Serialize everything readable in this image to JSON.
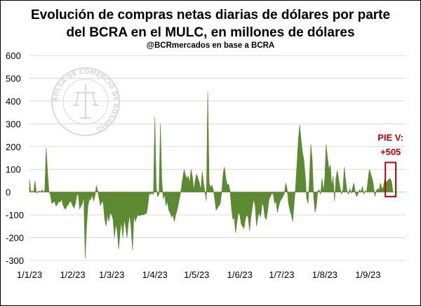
{
  "chart_data": {
    "type": "area",
    "title_line1": "Evolución de compras netas diarias de dólares por parte",
    "title_line2": "del BCRA en el MULC, en millones de dólares",
    "subtitle": "@BCRmercados en base a BCRA",
    "xlabel": "",
    "ylabel": "",
    "ylim": [
      -300,
      600
    ],
    "y_ticks": [
      600,
      500,
      400,
      300,
      200,
      100,
      0,
      -100,
      -200,
      -300
    ],
    "x_tick_labels": [
      "1/1/23",
      "1/2/23",
      "1/3/23",
      "1/4/23",
      "1/5/23",
      "1/6/23",
      "1/7/23",
      "1/8/23",
      "1/9/23"
    ],
    "x_tick_days": [
      0,
      31,
      59,
      90,
      120,
      151,
      181,
      212,
      243
    ],
    "xlim_days": [
      0,
      270
    ],
    "grid": true,
    "color": "#5b8a31",
    "annotation": {
      "line1": "PIE V:",
      "line2": "+505",
      "color": "#c00000"
    },
    "watermark": "BOLSA DE COMERCIO DE ROSARIO",
    "series": [
      {
        "points": [
          [
            0,
            55
          ],
          [
            1,
            0
          ],
          [
            2,
            5
          ],
          [
            3,
            0
          ],
          [
            4,
            50
          ],
          [
            5,
            -5
          ],
          [
            6,
            0
          ],
          [
            7,
            5
          ],
          [
            8,
            0
          ],
          [
            9,
            10
          ],
          [
            10,
            0
          ],
          [
            11,
            5
          ],
          [
            12,
            195
          ],
          [
            13,
            90
          ],
          [
            14,
            0
          ],
          [
            15,
            -10
          ],
          [
            16,
            -50
          ],
          [
            17,
            -45
          ],
          [
            18,
            -40
          ],
          [
            19,
            -60
          ],
          [
            20,
            -55
          ],
          [
            21,
            -40
          ],
          [
            22,
            -45
          ],
          [
            23,
            -30
          ],
          [
            24,
            -55
          ],
          [
            25,
            -70
          ],
          [
            26,
            -75
          ],
          [
            27,
            -60
          ],
          [
            28,
            -55
          ],
          [
            29,
            -40
          ],
          [
            30,
            -45
          ],
          [
            31,
            -60
          ],
          [
            32,
            -70
          ],
          [
            33,
            -50
          ],
          [
            34,
            -15
          ],
          [
            35,
            -10
          ],
          [
            36,
            -75
          ],
          [
            37,
            -60
          ],
          [
            38,
            -50
          ],
          [
            39,
            -20
          ],
          [
            40,
            -290
          ],
          [
            41,
            -150
          ],
          [
            42,
            -60
          ],
          [
            43,
            -30
          ],
          [
            44,
            -35
          ],
          [
            45,
            -10
          ],
          [
            46,
            -40
          ],
          [
            47,
            -20
          ],
          [
            48,
            30
          ],
          [
            49,
            5
          ],
          [
            50,
            -30
          ],
          [
            51,
            -60
          ],
          [
            52,
            -40
          ],
          [
            53,
            -50
          ],
          [
            54,
            -120
          ],
          [
            55,
            -150
          ],
          [
            56,
            -100
          ],
          [
            57,
            -130
          ],
          [
            58,
            -90
          ],
          [
            59,
            -100
          ],
          [
            60,
            -120
          ],
          [
            61,
            -200
          ],
          [
            62,
            -140
          ],
          [
            63,
            -170
          ],
          [
            64,
            -250
          ],
          [
            65,
            -180
          ],
          [
            66,
            -130
          ],
          [
            67,
            -200
          ],
          [
            68,
            -120
          ],
          [
            69,
            -150
          ],
          [
            70,
            -200
          ],
          [
            71,
            -140
          ],
          [
            72,
            -100
          ],
          [
            73,
            -160
          ],
          [
            74,
            -255
          ],
          [
            75,
            -100
          ],
          [
            76,
            -130
          ],
          [
            77,
            -110
          ],
          [
            78,
            -100
          ],
          [
            79,
            -105
          ],
          [
            80,
            -100
          ],
          [
            81,
            -100
          ],
          [
            82,
            -100
          ],
          [
            83,
            -95
          ],
          [
            84,
            -95
          ],
          [
            85,
            -60
          ],
          [
            86,
            -5
          ],
          [
            87,
            -10
          ],
          [
            88,
            -5
          ],
          [
            89,
            -10
          ],
          [
            90,
            330
          ],
          [
            91,
            20
          ],
          [
            92,
            -20
          ],
          [
            93,
            -10
          ],
          [
            94,
            300
          ],
          [
            95,
            50
          ],
          [
            96,
            -30
          ],
          [
            97,
            -10
          ],
          [
            98,
            -60
          ],
          [
            99,
            -40
          ],
          [
            100,
            -80
          ],
          [
            101,
            -90
          ],
          [
            102,
            -110
          ],
          [
            103,
            -100
          ],
          [
            104,
            -130
          ],
          [
            105,
            -100
          ],
          [
            106,
            -80
          ],
          [
            107,
            -50
          ],
          [
            108,
            -20
          ],
          [
            109,
            15
          ],
          [
            110,
            60
          ],
          [
            111,
            100
          ],
          [
            112,
            75
          ],
          [
            113,
            60
          ],
          [
            114,
            70
          ],
          [
            115,
            40
          ],
          [
            116,
            100
          ],
          [
            117,
            65
          ],
          [
            118,
            10
          ],
          [
            119,
            50
          ],
          [
            120,
            80
          ],
          [
            121,
            60
          ],
          [
            122,
            40
          ],
          [
            123,
            10
          ],
          [
            124,
            90
          ],
          [
            125,
            40
          ],
          [
            126,
            0
          ],
          [
            127,
            -40
          ],
          [
            128,
            440
          ],
          [
            129,
            40
          ],
          [
            130,
            20
          ],
          [
            131,
            30
          ],
          [
            132,
            10
          ],
          [
            133,
            -30
          ],
          [
            134,
            -80
          ],
          [
            135,
            -70
          ],
          [
            136,
            -60
          ],
          [
            137,
            -50
          ],
          [
            138,
            0
          ],
          [
            139,
            80
          ],
          [
            140,
            110
          ],
          [
            141,
            60
          ],
          [
            142,
            30
          ],
          [
            143,
            35
          ],
          [
            144,
            5
          ],
          [
            145,
            -70
          ],
          [
            146,
            -120
          ],
          [
            147,
            -110
          ],
          [
            148,
            -180
          ],
          [
            149,
            -130
          ],
          [
            150,
            -90
          ],
          [
            151,
            -100
          ],
          [
            152,
            -140
          ],
          [
            153,
            -150
          ],
          [
            154,
            -160
          ],
          [
            155,
            -120
          ],
          [
            156,
            -100
          ],
          [
            157,
            -110
          ],
          [
            158,
            -170
          ],
          [
            159,
            -110
          ],
          [
            160,
            -70
          ],
          [
            161,
            -30
          ],
          [
            162,
            -60
          ],
          [
            163,
            -150
          ],
          [
            164,
            -110
          ],
          [
            165,
            -90
          ],
          [
            166,
            -110
          ],
          [
            167,
            -50
          ],
          [
            168,
            -60
          ],
          [
            169,
            -110
          ],
          [
            170,
            -120
          ],
          [
            171,
            -80
          ],
          [
            172,
            -30
          ],
          [
            173,
            -20
          ],
          [
            174,
            -5
          ],
          [
            175,
            -10
          ],
          [
            176,
            -50
          ],
          [
            177,
            -40
          ],
          [
            178,
            -90
          ],
          [
            179,
            -60
          ],
          [
            180,
            -40
          ],
          [
            181,
            -30
          ],
          [
            182,
            -20
          ],
          [
            183,
            -5
          ],
          [
            184,
            40
          ],
          [
            185,
            10
          ],
          [
            186,
            -50
          ],
          [
            187,
            -80
          ],
          [
            188,
            -100
          ],
          [
            189,
            -130
          ],
          [
            190,
            -50
          ],
          [
            191,
            20
          ],
          [
            192,
            120
          ],
          [
            193,
            225
          ],
          [
            194,
            295
          ],
          [
            195,
            230
          ],
          [
            196,
            175
          ],
          [
            197,
            140
          ],
          [
            198,
            70
          ],
          [
            199,
            -30
          ],
          [
            200,
            -50
          ],
          [
            201,
            55
          ],
          [
            202,
            210
          ],
          [
            203,
            140
          ],
          [
            204,
            -20
          ],
          [
            205,
            -90
          ],
          [
            206,
            -60
          ],
          [
            207,
            5
          ],
          [
            208,
            10
          ],
          [
            209,
            -10
          ],
          [
            210,
            60
          ],
          [
            211,
            5
          ],
          [
            212,
            60
          ],
          [
            213,
            210
          ],
          [
            214,
            150
          ],
          [
            215,
            100
          ],
          [
            216,
            120
          ],
          [
            217,
            25
          ],
          [
            218,
            70
          ],
          [
            219,
            -40
          ],
          [
            220,
            60
          ],
          [
            221,
            95
          ],
          [
            222,
            55
          ],
          [
            223,
            20
          ],
          [
            224,
            -10
          ],
          [
            225,
            10
          ],
          [
            226,
            110
          ],
          [
            227,
            50
          ],
          [
            228,
            5
          ],
          [
            229,
            -10
          ],
          [
            230,
            15
          ],
          [
            231,
            -5
          ],
          [
            232,
            20
          ],
          [
            233,
            40
          ],
          [
            234,
            -5
          ],
          [
            235,
            -20
          ],
          [
            236,
            -5
          ],
          [
            237,
            10
          ],
          [
            238,
            0
          ],
          [
            239,
            25
          ],
          [
            240,
            -10
          ],
          [
            241,
            5
          ],
          [
            242,
            0
          ],
          [
            243,
            50
          ],
          [
            244,
            100
          ],
          [
            245,
            80
          ],
          [
            246,
            60
          ],
          [
            247,
            30
          ],
          [
            248,
            -20
          ],
          [
            249,
            5
          ],
          [
            250,
            15
          ],
          [
            251,
            10
          ],
          [
            252,
            40
          ],
          [
            253,
            15
          ],
          [
            254,
            20
          ],
          [
            255,
            55
          ],
          [
            256,
            40
          ],
          [
            257,
            50
          ],
          [
            258,
            55
          ],
          [
            259,
            60
          ],
          [
            260,
            45
          ],
          [
            261,
            0
          ]
        ]
      }
    ]
  }
}
